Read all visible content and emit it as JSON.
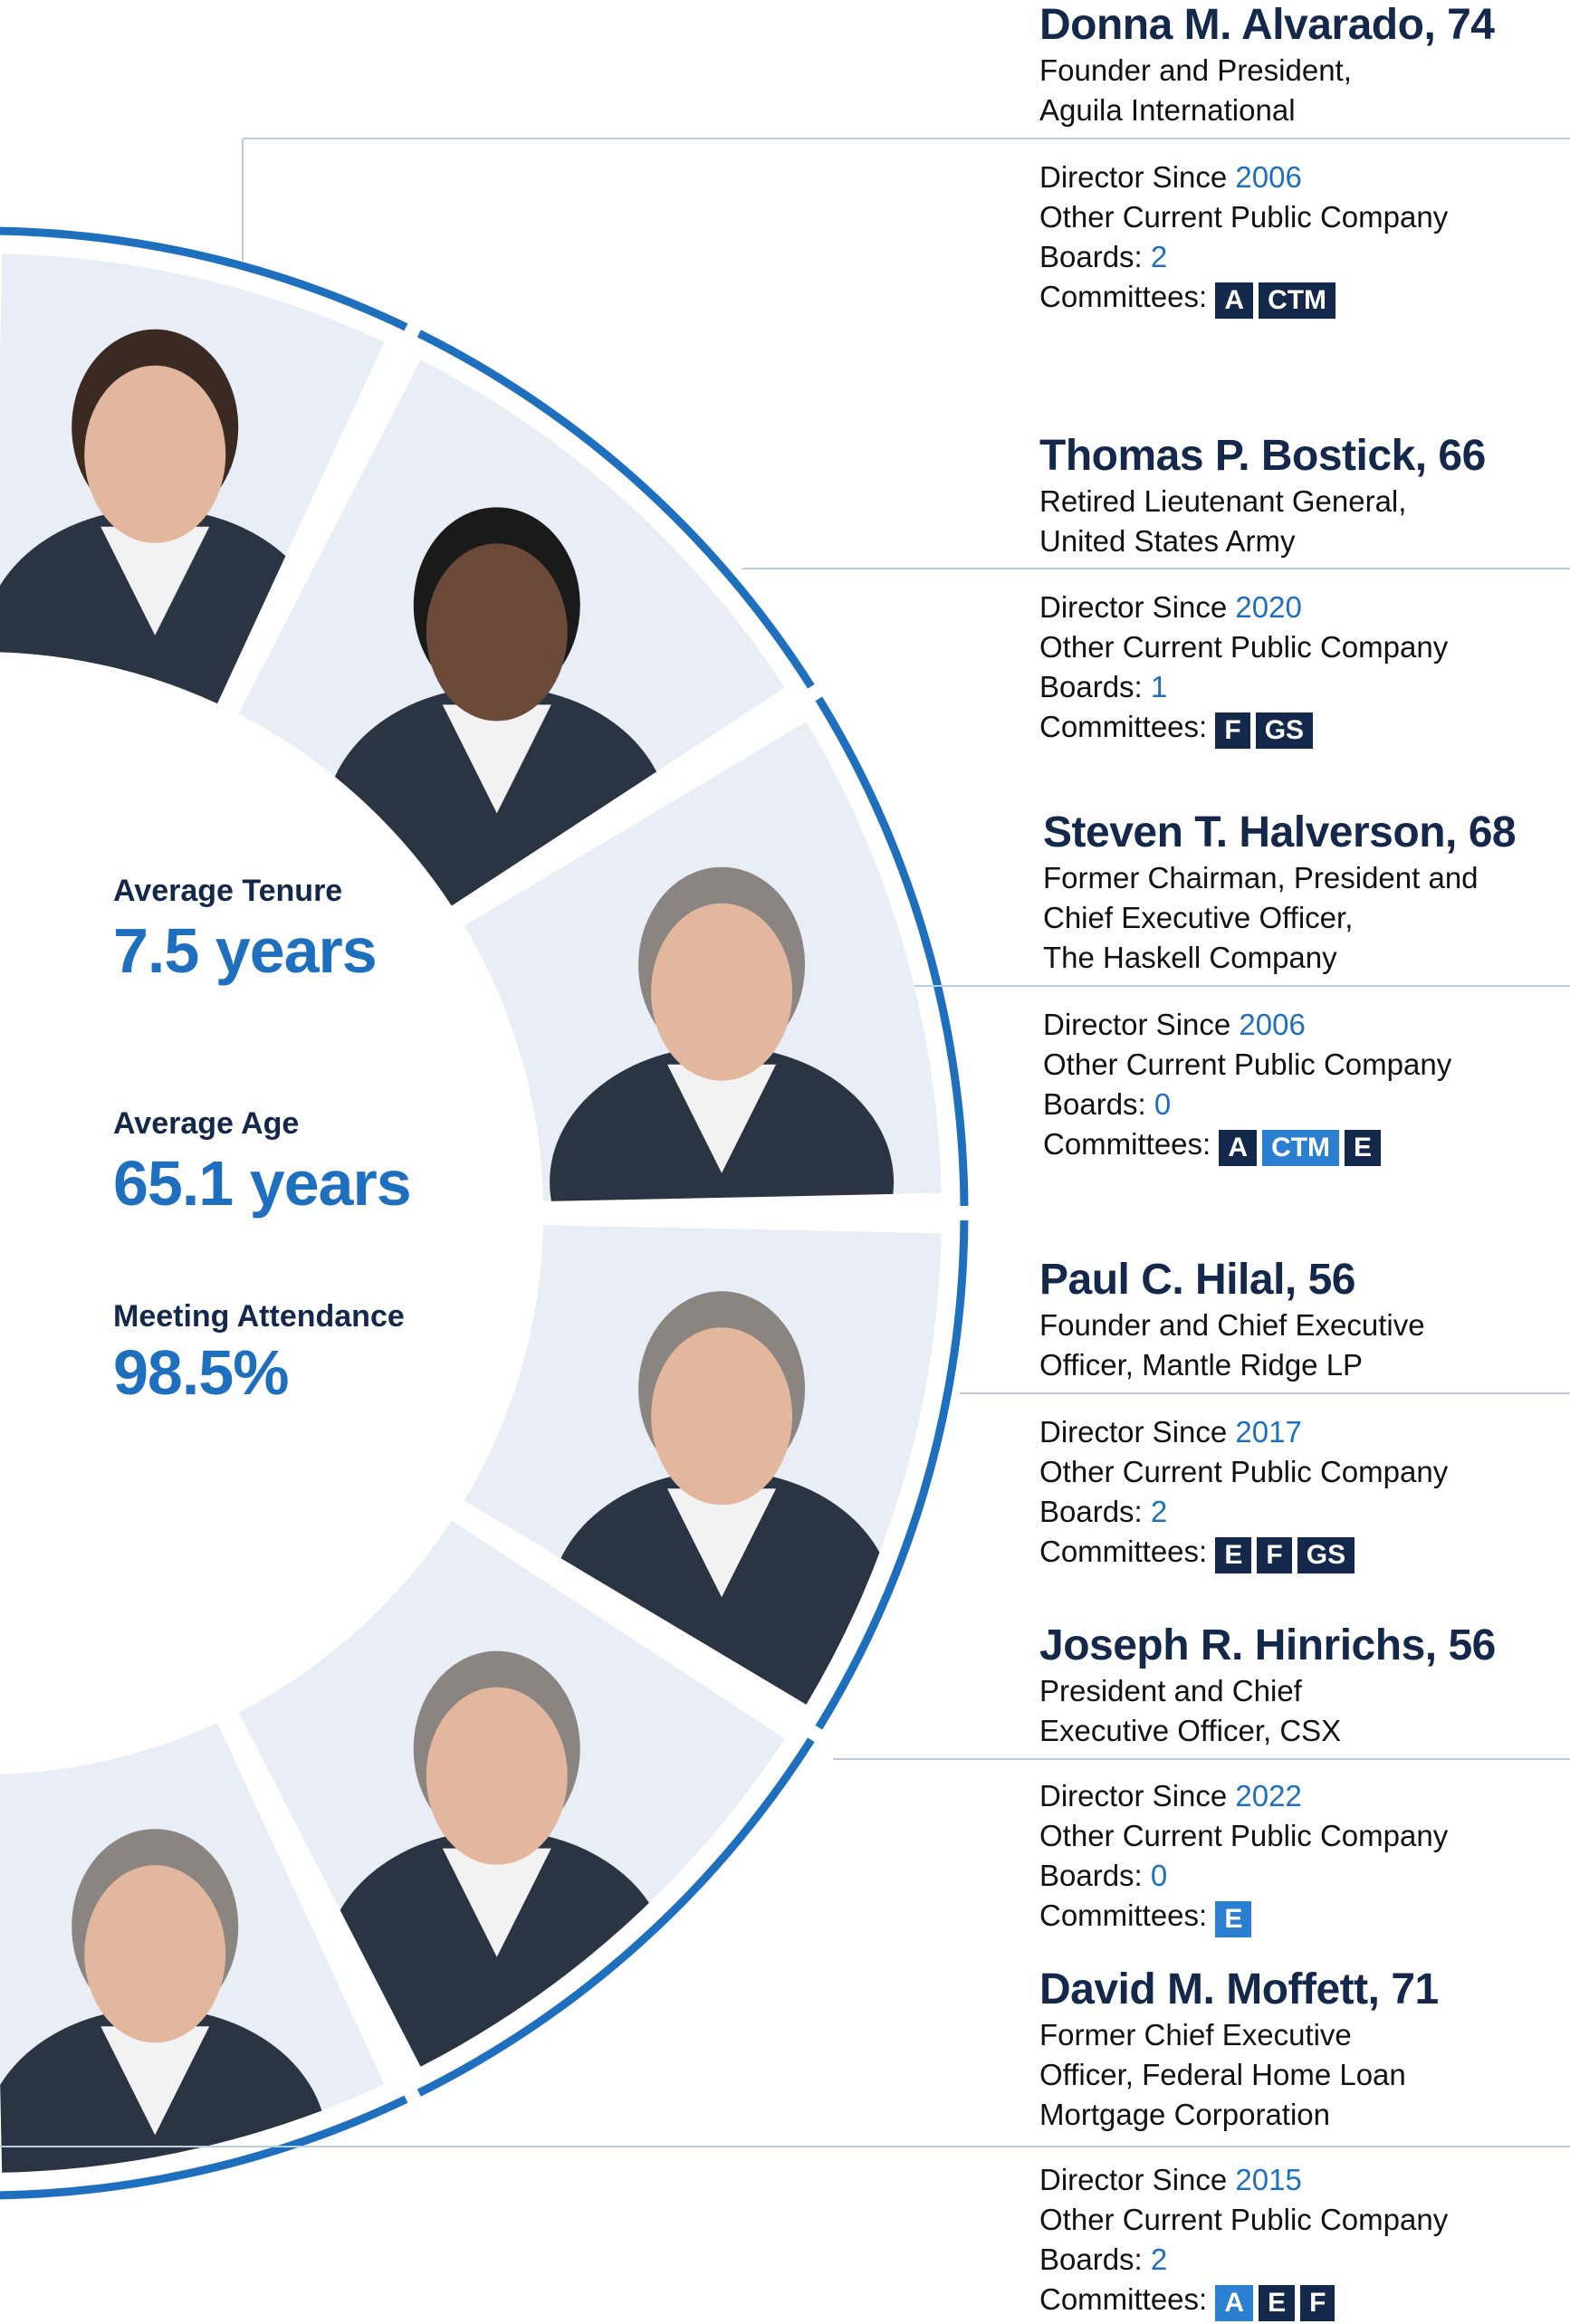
{
  "stats": [
    {
      "label": "Average Tenure",
      "value": "7.5 years"
    },
    {
      "label": "Average Age",
      "value": "65.1 years"
    },
    {
      "label": "Meeting Attendance",
      "value": "98.5%"
    }
  ],
  "directors": [
    {
      "name": "Donna M. Alvarado, 74",
      "title": [
        "Founder and President,",
        "Aguila International"
      ],
      "since_label": "Director Since ",
      "since": "2006",
      "boards_label_1": "Other Current Public Company",
      "boards_label_2": "Boards: ",
      "boards": "2",
      "committees_label": "Committees:",
      "committees": [
        {
          "code": "A",
          "chair": false
        },
        {
          "code": "CTM",
          "chair": false
        }
      ]
    },
    {
      "name": "Thomas P. Bostick, 66",
      "title": [
        "Retired Lieutenant General,",
        "United States Army"
      ],
      "since_label": "Director Since ",
      "since": "2020",
      "boards_label_1": "Other Current Public Company",
      "boards_label_2": "Boards: ",
      "boards": "1",
      "committees_label": "Committees:",
      "committees": [
        {
          "code": "F",
          "chair": false
        },
        {
          "code": "GS",
          "chair": false
        }
      ]
    },
    {
      "name": "Steven T. Halverson, 68",
      "title": [
        "Former Chairman, President and",
        "Chief Executive Officer,",
        "The Haskell Company"
      ],
      "since_label": "Director Since ",
      "since": "2006",
      "boards_label_1": "Other Current Public Company",
      "boards_label_2": "Boards: ",
      "boards": "0",
      "committees_label": "Committees:",
      "committees": [
        {
          "code": "A",
          "chair": false
        },
        {
          "code": "CTM",
          "chair": true
        },
        {
          "code": "E",
          "chair": false
        }
      ]
    },
    {
      "name": "Paul C. Hilal, 56",
      "title": [
        "Founder and Chief Executive",
        "Officer, Mantle Ridge LP"
      ],
      "since_label": "Director Since ",
      "since": "2017",
      "boards_label_1": "Other Current Public Company",
      "boards_label_2": "Boards: ",
      "boards": "2",
      "committees_label": "Committees:",
      "committees": [
        {
          "code": "E",
          "chair": false
        },
        {
          "code": "F",
          "chair": false
        },
        {
          "code": "GS",
          "chair": false
        }
      ]
    },
    {
      "name": "Joseph R. Hinrichs, 56",
      "title": [
        "President and Chief",
        "Executive Officer, CSX"
      ],
      "since_label": "Director Since ",
      "since": "2022",
      "boards_label_1": "Other Current Public Company",
      "boards_label_2": "Boards: ",
      "boards": "0",
      "committees_label": "Committees:",
      "committees": [
        {
          "code": "E",
          "chair": true
        }
      ]
    },
    {
      "name": "David M. Moffett, 71",
      "title": [
        "Former Chief Executive",
        "Officer, Federal Home Loan",
        "Mortgage Corporation"
      ],
      "since_label": "Director Since ",
      "since": "2015",
      "boards_label_1": "Other Current Public Company",
      "boards_label_2": "Boards: ",
      "boards": "2",
      "committees_label": "Committees:",
      "committees": [
        {
          "code": "A",
          "chair": true
        },
        {
          "code": "E",
          "chair": false
        },
        {
          "code": "F",
          "chair": false
        }
      ]
    }
  ],
  "colors": {
    "ring": "#1f6fbf",
    "panel": "#e9edf6",
    "navy": "#14284b",
    "chair_badge": "#2b7fd1"
  }
}
